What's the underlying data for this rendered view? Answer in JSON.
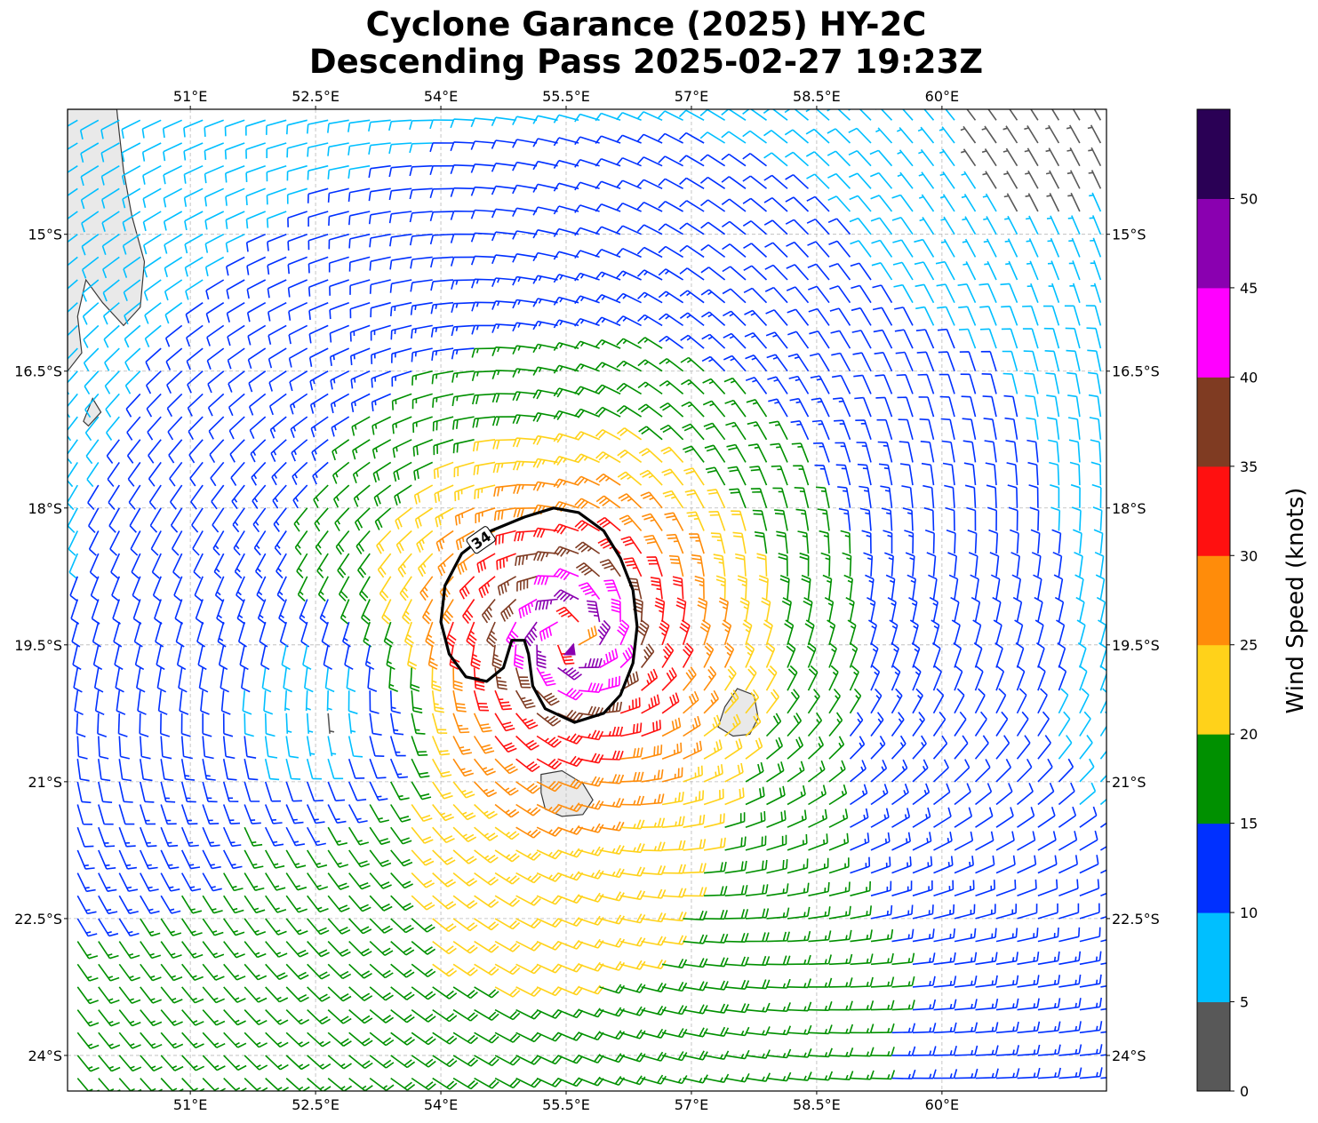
{
  "title_line1": "Cyclone Garance (2025) HY-2C",
  "title_line2": "Descending Pass 2025-02-27 19:23Z",
  "map": {
    "lon_range": [
      49.53,
      61.97
    ],
    "lat_range": [
      -24.39,
      -13.63
    ],
    "x_ticks": [
      {
        "value": 51.0,
        "label": "51°E"
      },
      {
        "value": 52.5,
        "label": "52.5°E"
      },
      {
        "value": 54.0,
        "label": "54°E"
      },
      {
        "value": 55.5,
        "label": "55.5°E"
      },
      {
        "value": 57.0,
        "label": "57°E"
      },
      {
        "value": 58.5,
        "label": "58.5°E"
      },
      {
        "value": 60.0,
        "label": "60°E"
      }
    ],
    "y_ticks": [
      {
        "value": -15.0,
        "label": "15°S"
      },
      {
        "value": -16.5,
        "label": "16.5°S"
      },
      {
        "value": -18.0,
        "label": "18°S"
      },
      {
        "value": -19.5,
        "label": "19.5°S"
      },
      {
        "value": -21.0,
        "label": "21°S"
      },
      {
        "value": -22.5,
        "label": "22.5°S"
      },
      {
        "value": -24.0,
        "label": "24°S"
      }
    ],
    "gridlines": true,
    "cyclone_center": {
      "lon": 55.55,
      "lat": -19.4
    },
    "contour_label": "34",
    "contour_level_kt": 34,
    "contour_34kt": [
      [
        55.0,
        -18.1
      ],
      [
        55.35,
        -18.0
      ],
      [
        55.65,
        -18.05
      ],
      [
        55.95,
        -18.25
      ],
      [
        56.15,
        -18.55
      ],
      [
        56.3,
        -18.9
      ],
      [
        56.35,
        -19.3
      ],
      [
        56.3,
        -19.7
      ],
      [
        56.15,
        -20.05
      ],
      [
        55.95,
        -20.25
      ],
      [
        55.6,
        -20.35
      ],
      [
        55.25,
        -20.2
      ],
      [
        55.1,
        -19.95
      ],
      [
        55.05,
        -19.6
      ],
      [
        55.0,
        -19.45
      ],
      [
        54.85,
        -19.45
      ],
      [
        54.75,
        -19.75
      ],
      [
        54.55,
        -19.9
      ],
      [
        54.3,
        -19.85
      ],
      [
        54.1,
        -19.6
      ],
      [
        54.0,
        -19.25
      ],
      [
        54.05,
        -18.85
      ],
      [
        54.25,
        -18.5
      ],
      [
        54.6,
        -18.25
      ],
      [
        55.0,
        -18.1
      ]
    ],
    "islands": [
      {
        "name": "Madagascar",
        "outline": [
          [
            49.53,
            -13.63
          ],
          [
            50.12,
            -13.63
          ],
          [
            50.15,
            -13.9
          ],
          [
            50.2,
            -14.3
          ],
          [
            50.3,
            -14.8
          ],
          [
            50.45,
            -15.3
          ],
          [
            50.4,
            -15.8
          ],
          [
            50.2,
            -16.0
          ],
          [
            49.95,
            -15.75
          ],
          [
            49.75,
            -15.5
          ],
          [
            49.65,
            -15.9
          ],
          [
            49.7,
            -16.3
          ],
          [
            49.53,
            -16.5
          ]
        ]
      },
      {
        "name": "Sainte-Marie",
        "outline": [
          [
            49.83,
            -16.8
          ],
          [
            49.93,
            -16.95
          ],
          [
            49.78,
            -17.1
          ],
          [
            49.72,
            -17.05
          ]
        ]
      },
      {
        "name": "Reunion",
        "outline": [
          [
            55.2,
            -20.92
          ],
          [
            55.45,
            -20.88
          ],
          [
            55.7,
            -21.02
          ],
          [
            55.82,
            -21.2
          ],
          [
            55.7,
            -21.36
          ],
          [
            55.45,
            -21.38
          ],
          [
            55.25,
            -21.3
          ],
          [
            55.2,
            -21.12
          ]
        ]
      },
      {
        "name": "Mauritius",
        "outline": [
          [
            57.55,
            -19.98
          ],
          [
            57.75,
            -20.05
          ],
          [
            57.8,
            -20.3
          ],
          [
            57.7,
            -20.48
          ],
          [
            57.5,
            -20.5
          ],
          [
            57.32,
            -20.4
          ],
          [
            57.4,
            -20.18
          ]
        ]
      }
    ]
  },
  "colorbar": {
    "label": "Wind Speed (knots)",
    "bounds": [
      0,
      5,
      10,
      15,
      20,
      25,
      30,
      35,
      40,
      45,
      50,
      55
    ],
    "tick_values": [
      0,
      5,
      10,
      15,
      20,
      25,
      30,
      35,
      40,
      45,
      50
    ],
    "tick_labels": [
      "0",
      "5",
      "10",
      "15",
      "20",
      "25",
      "30",
      "35",
      "40",
      "45",
      "50"
    ],
    "colors": [
      "#585858",
      "#00bfff",
      "#0030ff",
      "#009000",
      "#ffd21a",
      "#ff8c0a",
      "#ff1010",
      "#7f3b22",
      "#ff00ff",
      "#8a00b0",
      "#2a0055"
    ]
  }
}
